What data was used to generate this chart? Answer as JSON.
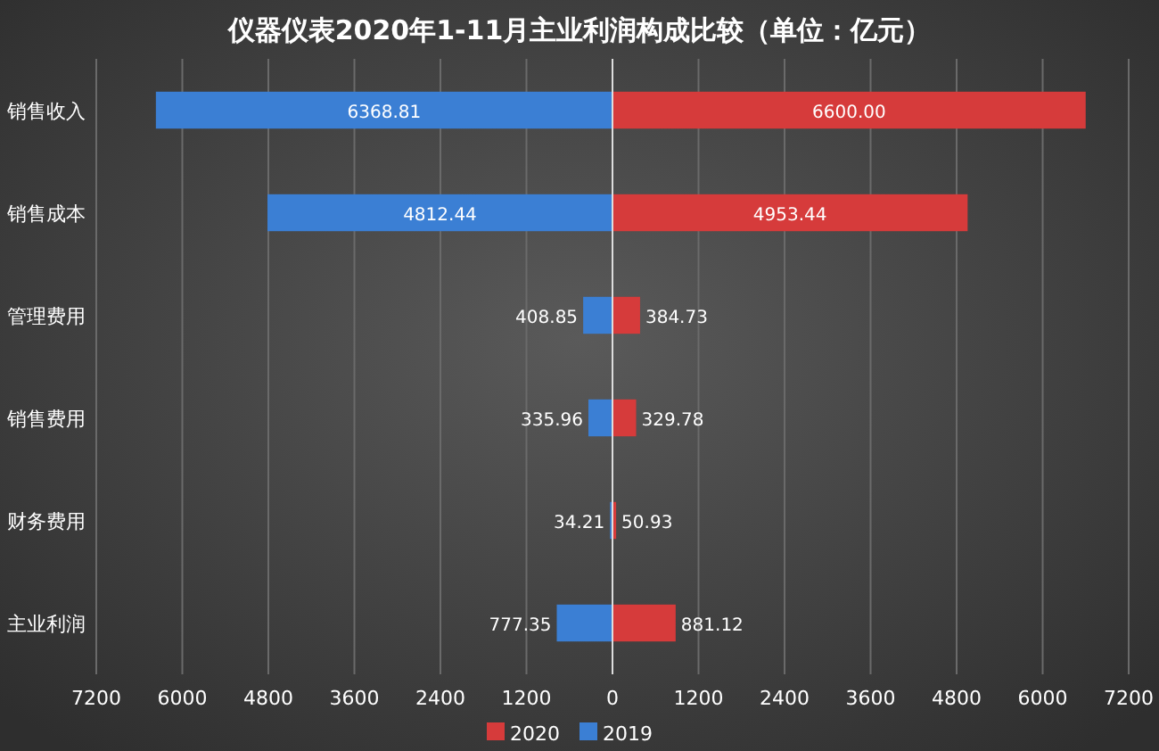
{
  "chart_data": {
    "type": "bar",
    "orientation": "horizontal",
    "title": "仪器仪表2020年1-11月主业利润构成比较（单位：亿元）",
    "categories": [
      "销售收入",
      "销售成本",
      "管理费用",
      "销售费用",
      "财务费用",
      "主业利润"
    ],
    "series": [
      {
        "name": "2020",
        "color": "#d63b3b",
        "values": [
          6600.0,
          4953.44,
          384.73,
          329.78,
          50.93,
          881.12
        ],
        "base": [
          0,
          0,
          0,
          0,
          0,
          0
        ],
        "value_labels": [
          "6600.00",
          "4953.44",
          "384.73",
          "329.78",
          "50.93",
          "881.12"
        ]
      },
      {
        "name": "2019",
        "color": "#3b7fd4",
        "values": [
          6368.81,
          4812.44,
          408.85,
          335.96,
          34.21,
          777.35
        ],
        "base": [
          -6368.81,
          -4812.44,
          -408.85,
          -335.96,
          -34.21,
          -777.35
        ],
        "value_labels": [
          "6368.81",
          "4812.44",
          "408.85",
          "335.96",
          "34.21",
          "777.35"
        ]
      }
    ],
    "xlim": [
      -7200,
      7200
    ],
    "xticks": [
      {
        "value": -7200,
        "label": "7200"
      },
      {
        "value": -6000,
        "label": "6000"
      },
      {
        "value": -4800,
        "label": "4800"
      },
      {
        "value": -3600,
        "label": "3600"
      },
      {
        "value": -2400,
        "label": "2400"
      },
      {
        "value": -1200,
        "label": "1200"
      },
      0,
      1200,
      2400,
      3600,
      4800,
      6000,
      7200
    ],
    "grid": "x",
    "legend": "bottom"
  }
}
